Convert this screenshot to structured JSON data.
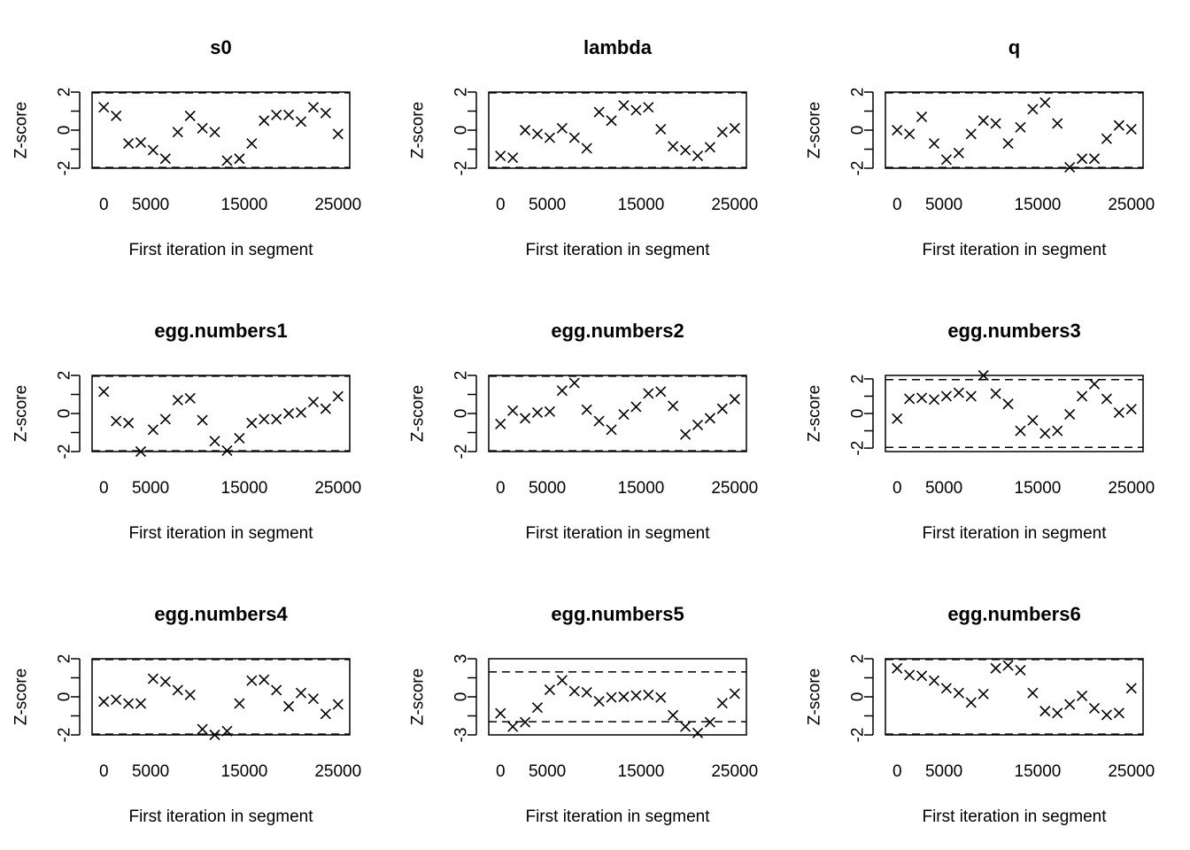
{
  "chart_data": [
    {
      "type": "scatter",
      "title": "s0",
      "xlabel": "First iteration in segment",
      "ylabel": "Z-score",
      "xlim": [
        -1250,
        26250
      ],
      "xticks": [
        0,
        5000,
        15000,
        25000
      ],
      "ylim": [
        -2,
        2
      ],
      "yticks": [
        -2,
        0,
        2
      ],
      "reference_lines": [
        -1.96,
        1.96
      ],
      "marker": "x",
      "x": [
        0,
        1316,
        2632,
        3947,
        5263,
        6579,
        7895,
        9211,
        10526,
        11842,
        13158,
        14474,
        15789,
        17105,
        18421,
        19737,
        21053,
        22368,
        23684,
        25000
      ],
      "y": [
        1.2,
        0.75,
        -0.7,
        -0.65,
        -1.05,
        -1.5,
        -0.1,
        0.75,
        0.1,
        -0.1,
        -1.6,
        -1.5,
        -0.7,
        0.5,
        0.8,
        0.8,
        0.45,
        1.2,
        0.9,
        -0.2
      ]
    },
    {
      "type": "scatter",
      "title": "lambda",
      "xlabel": "First iteration in segment",
      "ylabel": "Z-score",
      "xlim": [
        -1250,
        26250
      ],
      "xticks": [
        0,
        5000,
        15000,
        25000
      ],
      "ylim": [
        -2,
        2
      ],
      "yticks": [
        -2,
        0,
        2
      ],
      "reference_lines": [
        -1.96,
        1.96
      ],
      "marker": "x",
      "x": [
        0,
        1316,
        2632,
        3947,
        5263,
        6579,
        7895,
        9211,
        10526,
        11842,
        13158,
        14474,
        15789,
        17105,
        18421,
        19737,
        21053,
        22368,
        23684,
        25000
      ],
      "y": [
        -1.35,
        -1.45,
        0.0,
        -0.2,
        -0.4,
        0.1,
        -0.4,
        -0.95,
        0.95,
        0.5,
        1.3,
        1.05,
        1.2,
        0.05,
        -0.85,
        -1.05,
        -1.35,
        -0.9,
        -0.1,
        0.1
      ]
    },
    {
      "type": "scatter",
      "title": "q",
      "xlabel": "First iteration in segment",
      "ylabel": "Z-score",
      "xlim": [
        -1250,
        26250
      ],
      "xticks": [
        0,
        5000,
        15000,
        25000
      ],
      "ylim": [
        -2,
        2
      ],
      "yticks": [
        -2,
        0,
        2
      ],
      "reference_lines": [
        -1.96,
        1.96
      ],
      "marker": "x",
      "x": [
        0,
        1316,
        2632,
        3947,
        5263,
        6579,
        7895,
        9211,
        10526,
        11842,
        13158,
        14474,
        15789,
        17105,
        18421,
        19737,
        21053,
        22368,
        23684,
        25000
      ],
      "y": [
        0.0,
        -0.2,
        0.7,
        -0.7,
        -1.55,
        -1.2,
        -0.2,
        0.5,
        0.35,
        -0.7,
        0.15,
        1.1,
        1.45,
        0.35,
        -1.95,
        -1.5,
        -1.5,
        -0.45,
        0.25,
        0.05
      ]
    },
    {
      "type": "scatter",
      "title": "egg.numbers1",
      "xlabel": "First iteration in segment",
      "ylabel": "Z-score",
      "xlim": [
        -1250,
        26250
      ],
      "xticks": [
        0,
        5000,
        15000,
        25000
      ],
      "ylim": [
        -2,
        2
      ],
      "yticks": [
        -2,
        0,
        2
      ],
      "reference_lines": [
        -1.96,
        1.96
      ],
      "marker": "x",
      "x": [
        0,
        1316,
        2632,
        3947,
        5263,
        6579,
        7895,
        9211,
        10526,
        11842,
        13158,
        14474,
        15789,
        17105,
        18421,
        19737,
        21053,
        22368,
        23684,
        25000
      ],
      "y": [
        1.15,
        -0.4,
        -0.5,
        -2.0,
        -0.85,
        -0.3,
        0.7,
        0.8,
        -0.35,
        -1.45,
        -1.95,
        -1.3,
        -0.5,
        -0.3,
        -0.3,
        0.0,
        0.05,
        0.6,
        0.25,
        0.9
      ]
    },
    {
      "type": "scatter",
      "title": "egg.numbers2",
      "xlabel": "First iteration in segment",
      "ylabel": "Z-score",
      "xlim": [
        -1250,
        26250
      ],
      "xticks": [
        0,
        5000,
        15000,
        25000
      ],
      "ylim": [
        -2,
        2
      ],
      "yticks": [
        -2,
        0,
        2
      ],
      "reference_lines": [
        -1.96,
        1.96
      ],
      "marker": "x",
      "x": [
        0,
        1316,
        2632,
        3947,
        5263,
        6579,
        7895,
        9211,
        10526,
        11842,
        13158,
        14474,
        15789,
        17105,
        18421,
        19737,
        21053,
        22368,
        23684,
        25000
      ],
      "y": [
        -0.55,
        0.15,
        -0.25,
        0.05,
        0.1,
        1.2,
        1.6,
        0.2,
        -0.4,
        -0.85,
        -0.05,
        0.35,
        1.05,
        1.15,
        0.4,
        -1.1,
        -0.6,
        -0.25,
        0.25,
        0.75
      ]
    },
    {
      "type": "scatter",
      "title": "egg.numbers3",
      "xlabel": "First iteration in segment",
      "ylabel": "Z-score",
      "xlim": [
        -1250,
        26250
      ],
      "xticks": [
        0,
        5000,
        15000,
        25000
      ],
      "ylim": [
        -2.2,
        2.2
      ],
      "yticks": [
        -2,
        0,
        2
      ],
      "reference_lines": [
        -1.96,
        1.96
      ],
      "marker": "x",
      "x": [
        0,
        1316,
        2632,
        3947,
        5263,
        6579,
        7895,
        9211,
        10526,
        11842,
        13158,
        14474,
        15789,
        17105,
        18421,
        19737,
        21053,
        22368,
        23684,
        25000
      ],
      "y": [
        -0.3,
        0.85,
        0.9,
        0.8,
        1.0,
        1.2,
        1.0,
        2.2,
        1.15,
        0.55,
        -1.0,
        -0.4,
        -1.15,
        -1.0,
        -0.05,
        1.0,
        1.7,
        0.85,
        0.05,
        0.25
      ]
    },
    {
      "type": "scatter",
      "title": "egg.numbers4",
      "xlabel": "First iteration in segment",
      "ylabel": "Z-score",
      "xlim": [
        -1250,
        26250
      ],
      "xticks": [
        0,
        5000,
        15000,
        25000
      ],
      "ylim": [
        -2,
        2
      ],
      "yticks": [
        -2,
        0,
        2
      ],
      "reference_lines": [
        -1.96,
        1.96
      ],
      "marker": "x",
      "x": [
        0,
        1316,
        2632,
        3947,
        5263,
        6579,
        7895,
        9211,
        10526,
        11842,
        13158,
        14474,
        15789,
        17105,
        18421,
        19737,
        21053,
        22368,
        23684,
        25000
      ],
      "y": [
        -0.25,
        -0.15,
        -0.35,
        -0.35,
        0.95,
        0.8,
        0.35,
        0.1,
        -1.7,
        -2.0,
        -1.8,
        -0.35,
        0.85,
        0.9,
        0.35,
        -0.5,
        0.2,
        -0.1,
        -0.9,
        -0.4
      ]
    },
    {
      "type": "scatter",
      "title": "egg.numbers5",
      "xlabel": "First iteration in segment",
      "ylabel": "Z-score",
      "xlim": [
        -1250,
        26250
      ],
      "xticks": [
        0,
        5000,
        15000,
        25000
      ],
      "ylim": [
        -3,
        3
      ],
      "yticks": [
        -3,
        0,
        3
      ],
      "reference_lines": [
        -1.96,
        1.96
      ],
      "marker": "x",
      "x": [
        0,
        1316,
        2632,
        3947,
        5263,
        6579,
        7895,
        9211,
        10526,
        11842,
        13158,
        14474,
        15789,
        17105,
        18421,
        19737,
        21053,
        22368,
        23684,
        25000
      ],
      "y": [
        -1.3,
        -2.35,
        -2.0,
        -0.85,
        0.55,
        1.3,
        0.45,
        0.35,
        -0.35,
        -0.05,
        0.0,
        0.1,
        0.15,
        -0.05,
        -1.45,
        -2.35,
        -2.85,
        -2.0,
        -0.5,
        0.25
      ]
    },
    {
      "type": "scatter",
      "title": "egg.numbers6",
      "xlabel": "First iteration in segment",
      "ylabel": "Z-score",
      "xlim": [
        -1250,
        26250
      ],
      "xticks": [
        0,
        5000,
        15000,
        25000
      ],
      "ylim": [
        -2,
        2
      ],
      "yticks": [
        -2,
        0,
        2
      ],
      "reference_lines": [
        -1.96,
        1.96
      ],
      "marker": "x",
      "x": [
        0,
        1316,
        2632,
        3947,
        5263,
        6579,
        7895,
        9211,
        10526,
        11842,
        13158,
        14474,
        15789,
        17105,
        18421,
        19737,
        21053,
        22368,
        23684,
        25000
      ],
      "y": [
        1.5,
        1.15,
        1.1,
        0.85,
        0.45,
        0.2,
        -0.3,
        0.15,
        1.5,
        1.65,
        1.4,
        0.2,
        -0.75,
        -0.85,
        -0.4,
        0.05,
        -0.6,
        -0.95,
        -0.85,
        0.45
      ]
    }
  ]
}
